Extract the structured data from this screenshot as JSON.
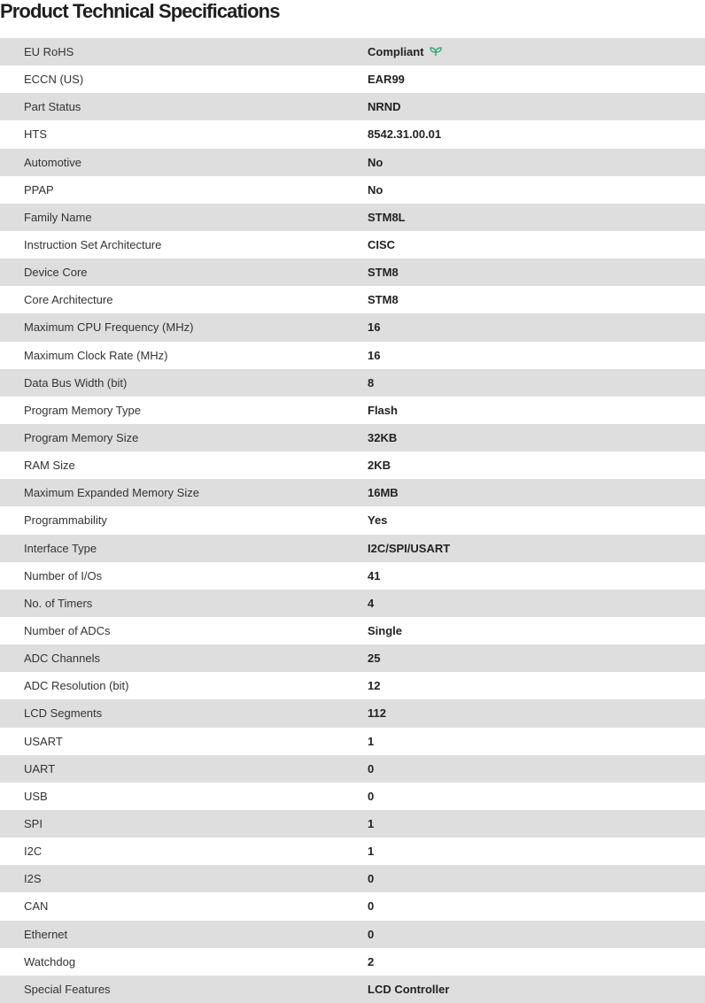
{
  "title": "Product Technical Specifications",
  "compliant_icon": "leaf-icon",
  "accent_color": "#3aa876",
  "specs": [
    {
      "label": "EU RoHS",
      "value": "Compliant"
    },
    {
      "label": "ECCN (US)",
      "value": "EAR99"
    },
    {
      "label": "Part Status",
      "value": "NRND"
    },
    {
      "label": "HTS",
      "value": "8542.31.00.01"
    },
    {
      "label": "Automotive",
      "value": "No"
    },
    {
      "label": "PPAP",
      "value": "No"
    },
    {
      "label": "Family Name",
      "value": "STM8L"
    },
    {
      "label": "Instruction Set Architecture",
      "value": "CISC"
    },
    {
      "label": "Device Core",
      "value": "STM8"
    },
    {
      "label": "Core Architecture",
      "value": "STM8"
    },
    {
      "label": "Maximum CPU Frequency (MHz)",
      "value": "16"
    },
    {
      "label": "Maximum Clock Rate (MHz)",
      "value": "16"
    },
    {
      "label": "Data Bus Width (bit)",
      "value": "8"
    },
    {
      "label": "Program Memory Type",
      "value": "Flash"
    },
    {
      "label": "Program Memory Size",
      "value": "32KB"
    },
    {
      "label": "RAM Size",
      "value": "2KB"
    },
    {
      "label": "Maximum Expanded Memory Size",
      "value": "16MB"
    },
    {
      "label": "Programmability",
      "value": "Yes"
    },
    {
      "label": "Interface Type",
      "value": "I2C/SPI/USART"
    },
    {
      "label": "Number of I/Os",
      "value": "41"
    },
    {
      "label": "No. of Timers",
      "value": "4"
    },
    {
      "label": "Number of ADCs",
      "value": "Single"
    },
    {
      "label": "ADC Channels",
      "value": "25"
    },
    {
      "label": "ADC Resolution (bit)",
      "value": "12"
    },
    {
      "label": "LCD Segments",
      "value": "112"
    },
    {
      "label": "USART",
      "value": "1"
    },
    {
      "label": "UART",
      "value": "0"
    },
    {
      "label": "USB",
      "value": "0"
    },
    {
      "label": "SPI",
      "value": "1"
    },
    {
      "label": "I2C",
      "value": "1"
    },
    {
      "label": "I2S",
      "value": "0"
    },
    {
      "label": "CAN",
      "value": "0"
    },
    {
      "label": "Ethernet",
      "value": "0"
    },
    {
      "label": "Watchdog",
      "value": "2"
    },
    {
      "label": "Special Features",
      "value": "LCD Controller"
    }
  ]
}
